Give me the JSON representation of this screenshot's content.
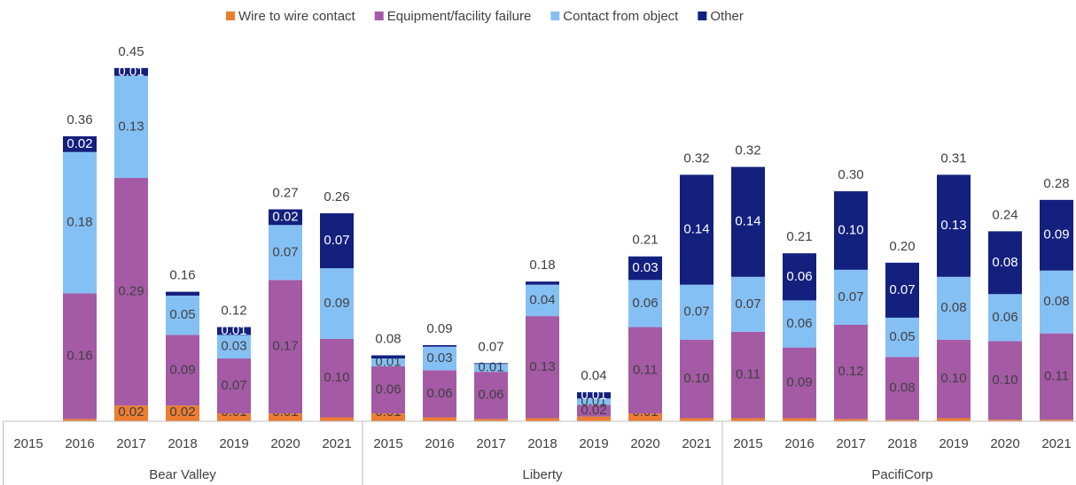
{
  "chart_data": {
    "type": "bar",
    "stacked": true,
    "ylim": [
      0,
      0.5
    ],
    "groups": [
      {
        "name": "Bear Valley",
        "categories": [
          "2015",
          "2016",
          "2017",
          "2018",
          "2019",
          "2020",
          "2021"
        ]
      },
      {
        "name": "Liberty",
        "categories": [
          "2015",
          "2016",
          "2017",
          "2018",
          "2019",
          "2020",
          "2021"
        ]
      },
      {
        "name": "PacifiCorp",
        "categories": [
          "2015",
          "2016",
          "2017",
          "2018",
          "2019",
          "2020",
          "2021"
        ]
      }
    ],
    "series": [
      {
        "name": "Wire to wire contact",
        "color": "#ed7d31",
        "values": [
          null,
          0.003,
          0.02,
          0.02,
          0.01,
          0.01,
          0.005,
          0.01,
          0.005,
          0.003,
          0.004,
          0.006,
          0.01,
          0.004,
          0.004,
          0.004,
          0.003,
          0.002,
          0.004,
          0.002,
          0.002
        ],
        "value_labels": [
          null,
          null,
          "0.02",
          "0.02",
          "0.01",
          "0.01",
          null,
          "0.01",
          null,
          null,
          null,
          "0.01",
          "0.01",
          null,
          null,
          null,
          null,
          null,
          null,
          null,
          null
        ]
      },
      {
        "name": "Equipment/facility failure",
        "color": "#a45aa5",
        "values": [
          null,
          0.16,
          0.29,
          0.09,
          0.07,
          0.17,
          0.1,
          0.06,
          0.06,
          0.06,
          0.13,
          0.015,
          0.11,
          0.1,
          0.11,
          0.09,
          0.12,
          0.08,
          0.1,
          0.1,
          0.11
        ],
        "value_labels": [
          null,
          "0.16",
          "0.29",
          "0.09",
          "0.07",
          "0.17",
          "0.10",
          "0.06",
          "0.06",
          "0.06",
          "0.13",
          "0.02",
          "0.11",
          "0.10",
          "0.11",
          "0.09",
          "0.12",
          "0.08",
          "0.10",
          "0.10",
          "0.11"
        ]
      },
      {
        "name": "Contact from object",
        "color": "#85c0f5",
        "values": [
          null,
          0.18,
          0.13,
          0.05,
          0.03,
          0.07,
          0.09,
          0.01,
          0.03,
          0.01,
          0.04,
          0.008,
          0.06,
          0.07,
          0.07,
          0.06,
          0.07,
          0.05,
          0.08,
          0.06,
          0.08
        ],
        "value_labels": [
          null,
          "0.18",
          "0.13",
          "0.05",
          "0.03",
          "0.07",
          "0.09",
          "0.01",
          "0.03",
          "0.01",
          "0.04",
          "0.01",
          "0.06",
          "0.07",
          "0.07",
          "0.06",
          "0.07",
          "0.05",
          "0.08",
          "0.06",
          "0.08"
        ]
      },
      {
        "name": "Other",
        "color": "#13207e",
        "values": [
          null,
          0.02,
          0.01,
          0.005,
          0.01,
          0.02,
          0.07,
          0.004,
          0.002,
          0.001,
          0.004,
          0.008,
          0.03,
          0.14,
          0.14,
          0.06,
          0.1,
          0.07,
          0.13,
          0.08,
          0.09
        ],
        "value_labels": [
          null,
          "0.02",
          "0.01",
          null,
          "0.01",
          "0.02",
          "0.07",
          null,
          null,
          null,
          null,
          "0.01",
          "0.03",
          "0.14",
          "0.14",
          "0.06",
          "0.10",
          "0.07",
          "0.13",
          "0.08",
          "0.09"
        ]
      }
    ],
    "total_labels": [
      null,
      "0.36",
      "0.45",
      "0.16",
      "0.12",
      "0.27",
      "0.26",
      "0.08",
      "0.09",
      "0.07",
      "0.18",
      "0.04",
      "0.21",
      "0.32",
      "0.32",
      "0.21",
      "0.30",
      "0.20",
      "0.31",
      "0.24",
      "0.28"
    ]
  }
}
